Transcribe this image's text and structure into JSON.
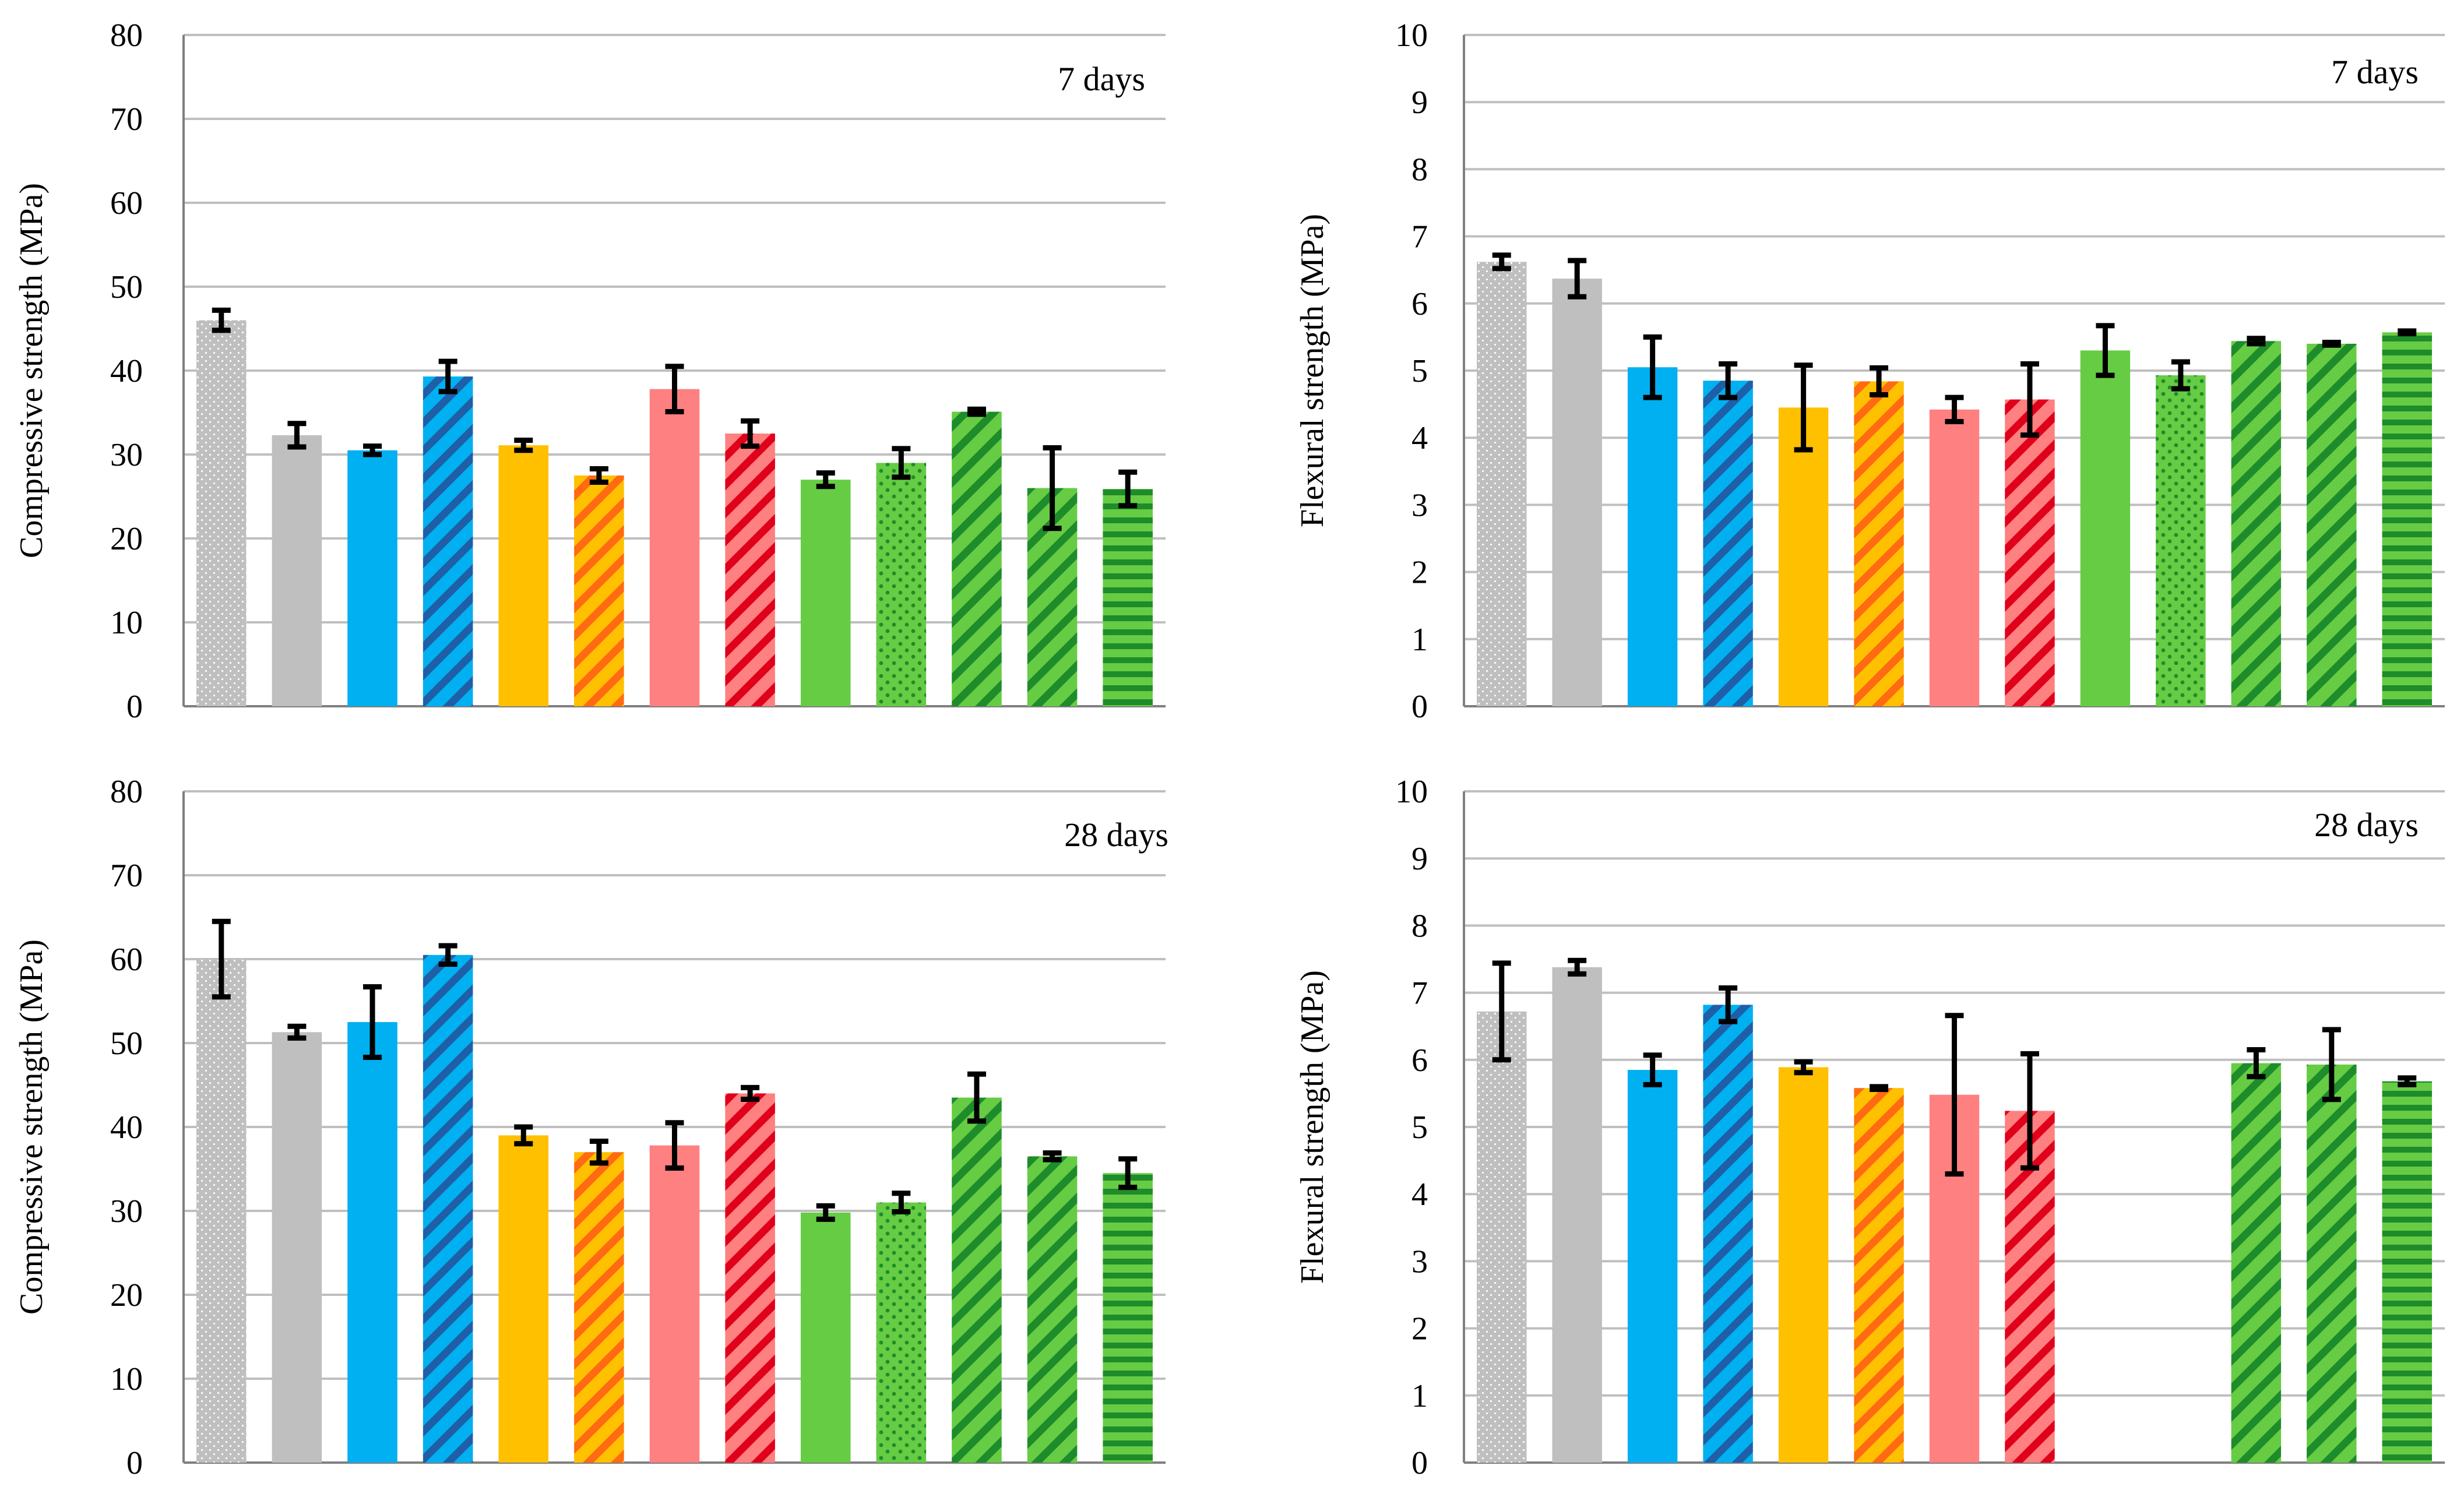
{
  "colors": {
    "gray": "#bfbfbf",
    "blue": "#00b0f0",
    "orange": "#ffc000",
    "pink": "#ff8080",
    "green": "#66cc44",
    "stripe_gray": "#ffffff",
    "stripe_blue": "#1f5fa8",
    "stripe_orange": "#ff6a13",
    "stripe_red": "#e0001b",
    "stripe_green": "#1e8c2a"
  },
  "bar_styles": [
    {
      "color": "gray",
      "pattern": "dots"
    },
    {
      "color": "gray",
      "pattern": "solid"
    },
    {
      "color": "blue",
      "pattern": "solid"
    },
    {
      "color": "blue",
      "pattern": "diagonal"
    },
    {
      "color": "orange",
      "pattern": "solid"
    },
    {
      "color": "orange",
      "pattern": "diagonal"
    },
    {
      "color": "pink",
      "pattern": "solid"
    },
    {
      "color": "pink",
      "pattern": "diagonal"
    },
    {
      "color": "green",
      "pattern": "solid"
    },
    {
      "color": "green",
      "pattern": "dots"
    },
    {
      "color": "green",
      "pattern": "diagonal"
    },
    {
      "color": "green",
      "pattern": "diagonal"
    },
    {
      "color": "green",
      "pattern": "horizontal"
    }
  ],
  "chart_data": [
    {
      "type": "bar",
      "id": "compressive-7d",
      "title": "7 days",
      "ylabel": "Compressive strength (MPa)",
      "ylim": [
        0,
        80
      ],
      "yticks": [
        0,
        10,
        20,
        30,
        40,
        50,
        60,
        70,
        80
      ],
      "values": [
        46,
        32.3,
        30.5,
        39.3,
        31.1,
        27.5,
        37.8,
        32.5,
        27,
        29,
        35.1,
        26,
        25.9
      ],
      "errors": [
        1.2,
        1.4,
        0.5,
        1.8,
        0.6,
        0.8,
        2.7,
        1.5,
        0.8,
        1.7,
        0.3,
        4.8,
        2.0
      ]
    },
    {
      "type": "bar",
      "id": "flexural-7d",
      "title": "7 days",
      "ylabel": "Flexural strength (MPa)",
      "ylim": [
        0,
        10
      ],
      "yticks": [
        0,
        1,
        2,
        3,
        4,
        5,
        6,
        7,
        8,
        9,
        10
      ],
      "values": [
        6.62,
        6.37,
        5.05,
        4.85,
        4.45,
        4.84,
        4.42,
        4.57,
        5.3,
        4.93,
        5.44,
        5.4,
        5.57
      ],
      "errors": [
        0.1,
        0.27,
        0.45,
        0.25,
        0.63,
        0.2,
        0.18,
        0.53,
        0.37,
        0.2,
        0.04,
        0.02,
        0.02
      ]
    },
    {
      "type": "bar",
      "id": "compressive-28d",
      "title": "28 days",
      "ylabel": "Compressive strength (MPa)",
      "ylim": [
        0,
        80
      ],
      "yticks": [
        0,
        10,
        20,
        30,
        40,
        50,
        60,
        70,
        80
      ],
      "values": [
        60,
        51.3,
        52.5,
        60.5,
        39,
        37,
        37.8,
        44,
        29.8,
        31,
        43.5,
        36.5,
        34.5
      ],
      "errors": [
        4.5,
        0.7,
        4.2,
        1.1,
        1.0,
        1.3,
        2.7,
        0.7,
        0.8,
        1.1,
        2.8,
        0.4,
        1.7
      ]
    },
    {
      "type": "bar",
      "id": "flexural-28d",
      "title": "28 days",
      "ylabel": "Flexural strength (MPa)",
      "ylim": [
        0,
        10
      ],
      "yticks": [
        0,
        1,
        2,
        3,
        4,
        5,
        6,
        7,
        8,
        9,
        10
      ],
      "values": [
        6.72,
        7.38,
        5.85,
        6.82,
        5.89,
        5.58,
        5.48,
        5.24,
        null,
        null,
        5.95,
        5.93,
        5.68
      ],
      "errors": [
        0.72,
        0.1,
        0.22,
        0.25,
        0.08,
        0.02,
        1.18,
        0.85,
        null,
        null,
        0.2,
        0.52,
        0.05
      ]
    }
  ]
}
